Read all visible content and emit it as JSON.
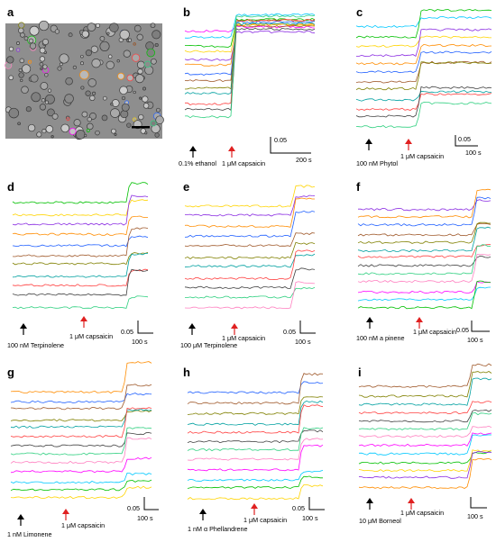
{
  "figure": {
    "panels": [
      {
        "id": "a",
        "label": "a",
        "kind": "micrograph"
      },
      {
        "id": "b",
        "label": "b",
        "stimulus_label": "0.1% ethanol",
        "capsaicin_label": "1 μM capsaicin",
        "scale_y": "0.05",
        "scale_x": "200 s"
      },
      {
        "id": "c",
        "label": "c",
        "stimulus_label": "100 nM Phytol",
        "capsaicin_label": "1 μM capsaicin",
        "scale_y": "0.05",
        "scale_x": "100 s"
      },
      {
        "id": "d",
        "label": "d",
        "stimulus_label": "100 nM Terpinolene",
        "capsaicin_label": "1 μM capsaicin",
        "scale_y": "0.05",
        "scale_x": "100 s"
      },
      {
        "id": "e",
        "label": "e",
        "stimulus_label": "100 μM Terpinolene",
        "capsaicin_label": "1 μM capsaicin",
        "scale_y": "0.05",
        "scale_x": "100 s"
      },
      {
        "id": "f",
        "label": "f",
        "stimulus_label": "100 nM a pinene",
        "capsaicin_label": "1 μM capsaicin",
        "scale_y": "0.05",
        "scale_x": "100 s"
      },
      {
        "id": "g",
        "label": "g",
        "stimulus_label": "1 nM Limonene",
        "capsaicin_label": "1 μM capsaicin",
        "scale_y": "0.05",
        "scale_x": "100 s"
      },
      {
        "id": "h",
        "label": "h",
        "stimulus_label": "1 nM α Phellandrene",
        "capsaicin_label": "1 μM capsaicin",
        "scale_y": "0.05",
        "scale_x": "100 s"
      },
      {
        "id": "i",
        "label": "i",
        "stimulus_label": "10 μM Borneol",
        "capsaicin_label": "1 μM capsaicin",
        "scale_y": "",
        "scale_x": "100 s"
      }
    ],
    "colors": {
      "stimulus_arrow": "#000000",
      "capsaicin_arrow": "#e02020",
      "trace_palette": [
        "#ff00ff",
        "#00c8ff",
        "#00c000",
        "#ffd400",
        "#8a2be2",
        "#ff8c00",
        "#2060ff",
        "#a05a2c",
        "#808000",
        "#00a0a0",
        "#ff4040",
        "#404040",
        "#30d080",
        "#ff80c0"
      ]
    }
  }
}
